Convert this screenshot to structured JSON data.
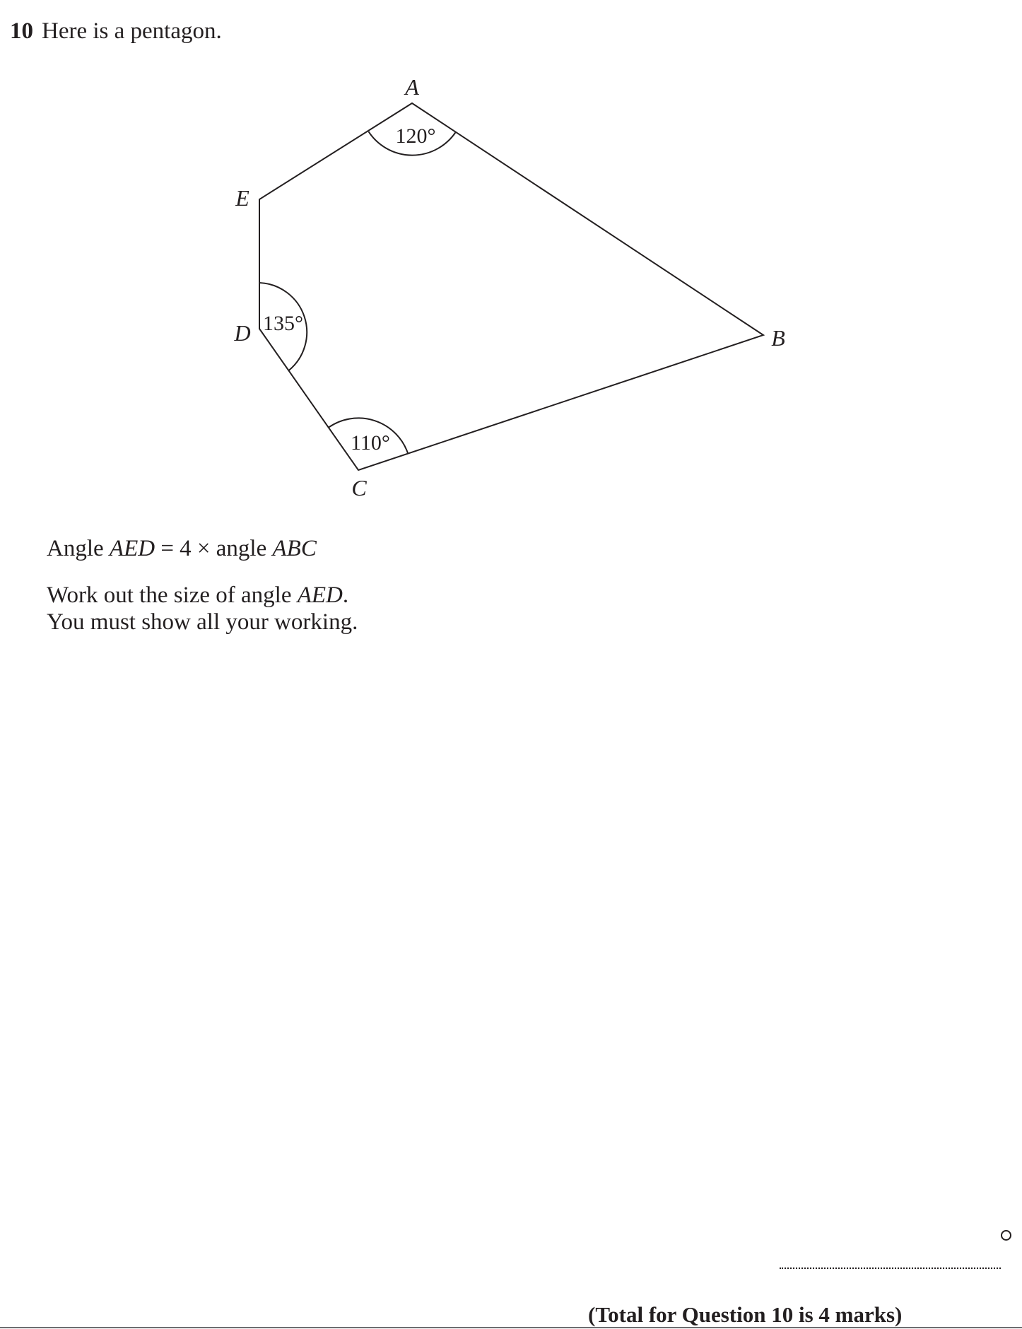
{
  "question": {
    "number": "10",
    "intro": "Here is a pentagon."
  },
  "figure": {
    "vertices": {
      "A": "A",
      "B": "B",
      "C": "C",
      "D": "D",
      "E": "E"
    },
    "angles": {
      "A": "120°",
      "D": "135°",
      "C": "110°"
    }
  },
  "stem": {
    "line1": {
      "p1": "Angle ",
      "aed": "AED",
      "p2": " = 4 × angle ",
      "abc": "ABC"
    },
    "line2": {
      "p1": "Work out the size of angle ",
      "aed": "AED",
      "p2": "."
    },
    "line3": "You must show all your working."
  },
  "answer": {
    "unit": "°"
  },
  "total": "(Total for Question 10 is 4 marks)"
}
